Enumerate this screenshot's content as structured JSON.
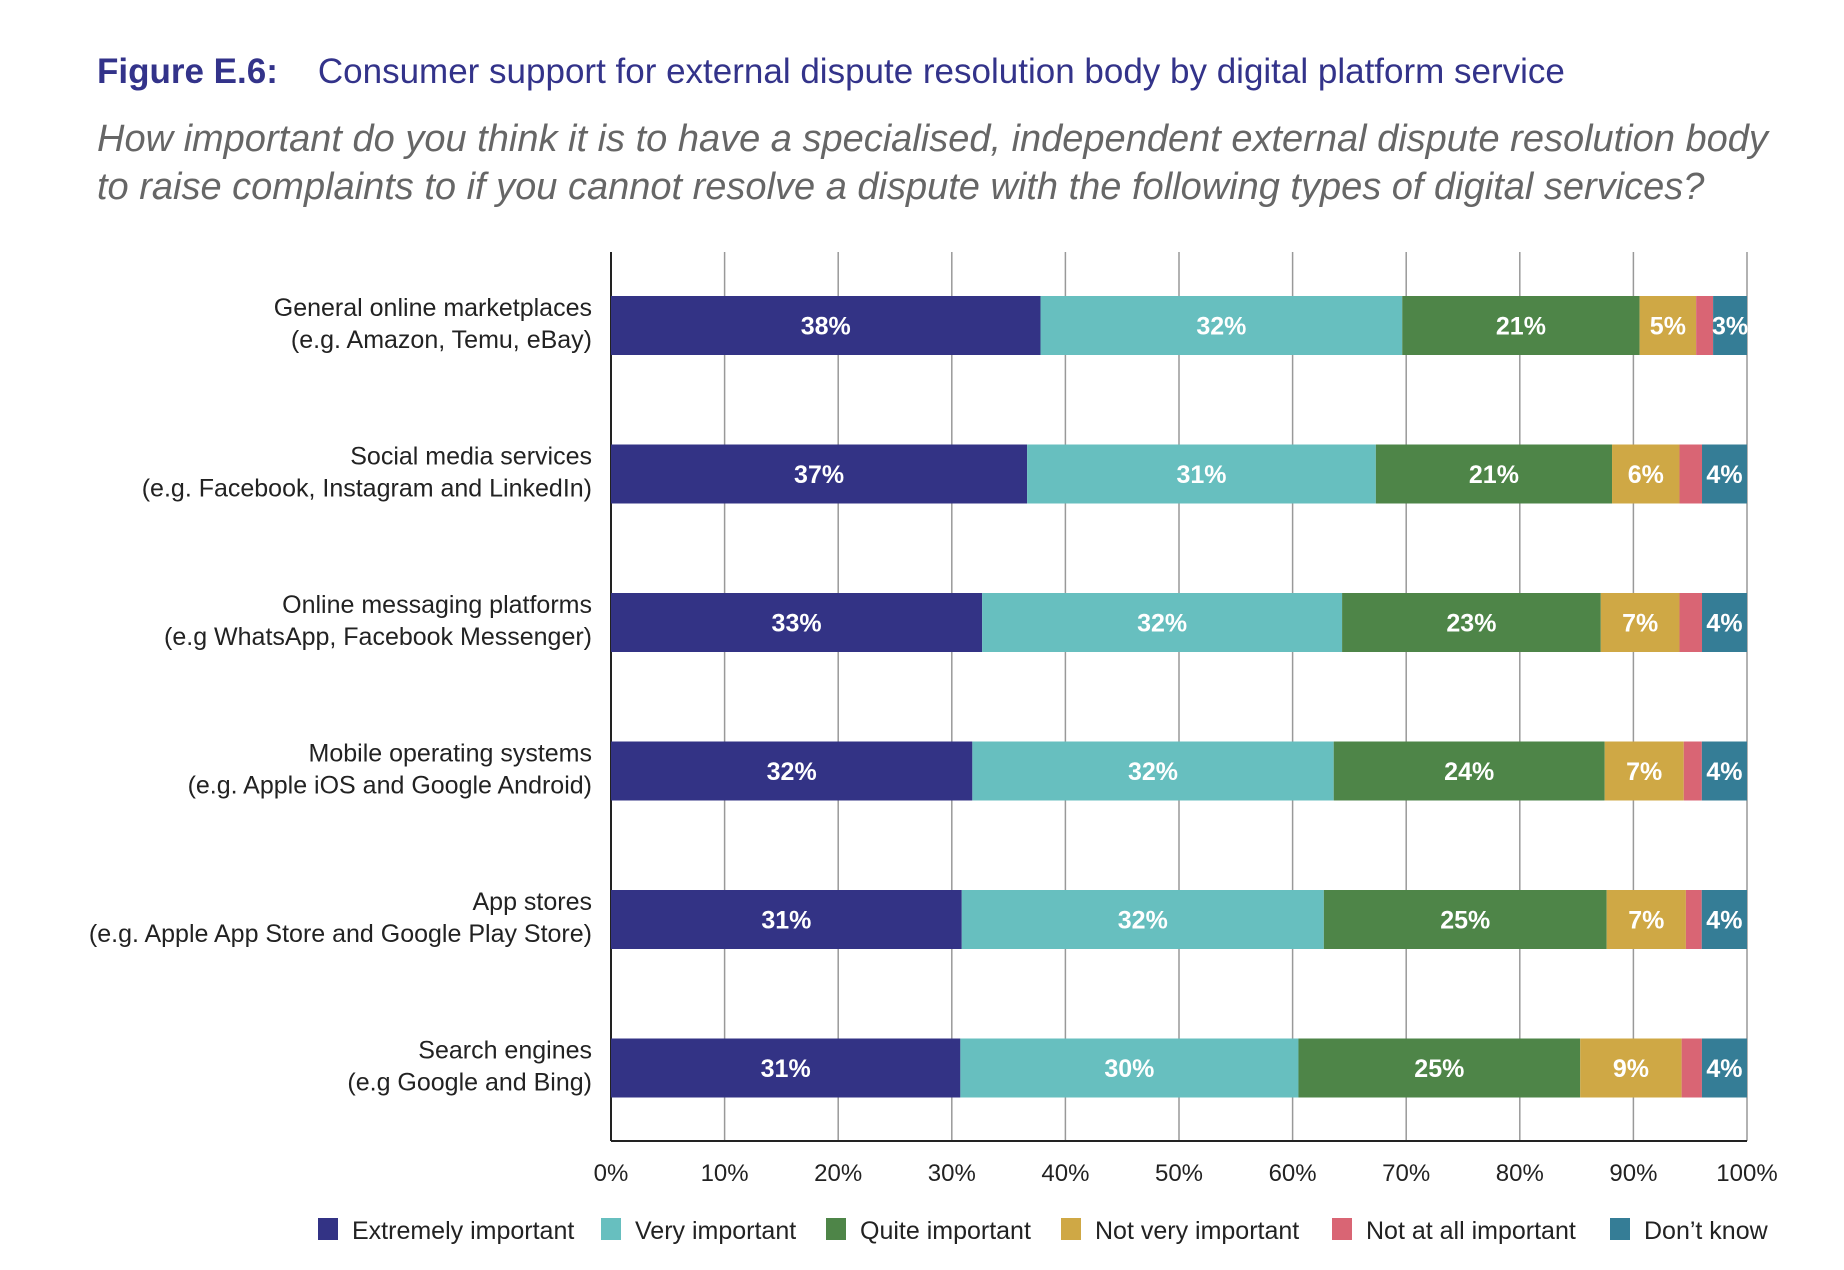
{
  "title": {
    "number": "Figure E.6:",
    "text": "Consumer support for external dispute resolution body by digital platform service"
  },
  "subtitle": "How important do you think it is to have a specialised, independent external dispute resolution body to raise complaints to if you cannot resolve a dispute with the following types of digital services?",
  "chart_data": {
    "type": "bar",
    "orientation": "horizontal",
    "stacked": true,
    "categories": [
      [
        "General online marketplaces",
        "(e.g. Amazon, Temu, eBay)"
      ],
      [
        "Social media services",
        "(e.g. Facebook, Instagram and LinkedIn)"
      ],
      [
        "Online messaging platforms",
        "(e.g WhatsApp, Facebook Messenger)"
      ],
      [
        "Mobile operating systems",
        "(e.g. Apple iOS and Google Android)"
      ],
      [
        "App stores",
        "(e.g. Apple App Store and Google Play Store)"
      ],
      [
        "Search engines",
        "(e.g Google and Bing)"
      ]
    ],
    "series": [
      {
        "name": "Extremely important",
        "color": "#333385",
        "values": [
          38,
          37,
          33,
          32,
          31,
          31
        ],
        "labels": [
          "38%",
          "37%",
          "33%",
          "32%",
          "31%",
          "31%"
        ]
      },
      {
        "name": "Very important",
        "color": "#67bfbf",
        "values": [
          32,
          31,
          32,
          32,
          32,
          30
        ],
        "labels": [
          "32%",
          "31%",
          "32%",
          "32%",
          "32%",
          "30%"
        ]
      },
      {
        "name": "Quite important",
        "color": "#4e8548",
        "values": [
          21,
          21,
          23,
          24,
          25,
          25
        ],
        "labels": [
          "21%",
          "21%",
          "23%",
          "24%",
          "25%",
          "25%"
        ]
      },
      {
        "name": "Not very important",
        "color": "#cfa845",
        "values": [
          5,
          6,
          7,
          7,
          7,
          9
        ],
        "labels": [
          "5%",
          "6%",
          "7%",
          "7%",
          "7%",
          "9%"
        ]
      },
      {
        "name": "Not at all important",
        "color": "#d96574",
        "values": [
          1.5,
          2,
          2,
          1.6,
          1.4,
          1.8
        ],
        "labels": []
      },
      {
        "name": "Don’t know",
        "color": "#357d96",
        "values": [
          3,
          4,
          4,
          4,
          4,
          4
        ],
        "labels": [
          "3%",
          "4%",
          "4%",
          "4%",
          "4%",
          "4%"
        ]
      }
    ],
    "xlim": [
      0,
      100
    ],
    "xticks": [
      "0%",
      "10%",
      "20%",
      "30%",
      "40%",
      "50%",
      "60%",
      "70%",
      "80%",
      "90%",
      "100%"
    ],
    "grid": true,
    "legend_position": "bottom"
  }
}
